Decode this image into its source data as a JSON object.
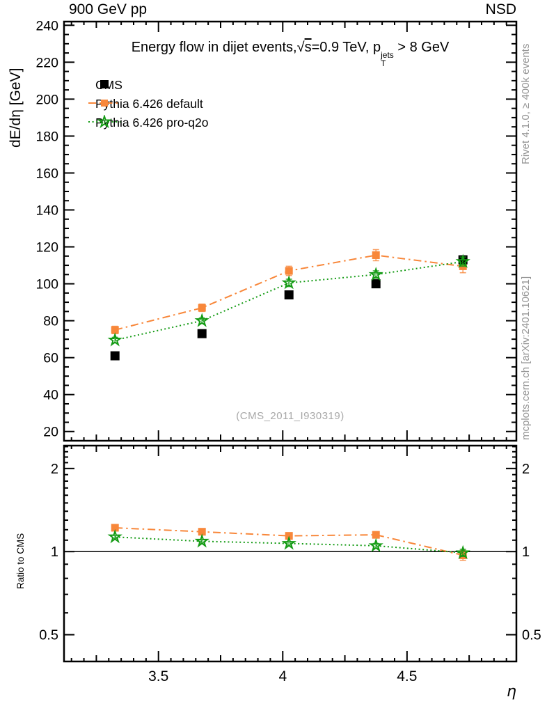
{
  "header": {
    "left": "900 GeV pp",
    "right": "NSD"
  },
  "title": {
    "prefix": "Energy flow in dijet events,",
    "sqrt_sym": "√",
    "sqrt_arg": "s",
    "mid": "=0.9 TeV, ",
    "p": "p",
    "sup": "jets",
    "sub": "T",
    "suffix": " > 8 GeV"
  },
  "axes": {
    "y_title": "dE/dη [GeV]",
    "ratio_title": "Ratio to CMS",
    "x_title": "η"
  },
  "legend": {
    "entries": [
      {
        "label": "CMS",
        "color": "#000000",
        "marker": "filled-square",
        "line": "none",
        "size": 12
      },
      {
        "label": "Pythia 6.426 default",
        "color": "#f8873a",
        "marker": "filled-square",
        "line": "dash-dot",
        "size": 10
      },
      {
        "label": "Pythia 6.426 pro-q2o",
        "color": "#149b14",
        "marker": "open-star",
        "line": "dotted",
        "size": 8
      }
    ]
  },
  "side_text": {
    "top_right": "Rivet 4.1.0, ≥ 400k events",
    "bottom_right": "mcplots.cern.ch [arXiv:2401.10621]"
  },
  "watermark": "(CMS_2011_I930319)",
  "colors": {
    "cms": "#000000",
    "pythia_default": "#f8873a",
    "pythia_proq2o": "#149b14",
    "side_text": "#959595",
    "watermark": "#a8a8a8"
  },
  "chart_data": [
    {
      "type": "scatter",
      "title": "Energy flow in dijet events, √s=0.9 TeV, pT^jets > 8 GeV",
      "xlabel": "η",
      "ylabel": "dE/dη [GeV]",
      "xlim": [
        3.12,
        4.94
      ],
      "ylim": [
        15,
        242
      ],
      "grid": false,
      "legend_position": "top-left",
      "watermark": "(CMS_2011_I930319)",
      "x": [
        3.325,
        3.675,
        4.025,
        4.375,
        4.725
      ],
      "x_bin_edges": [
        3.15,
        3.5,
        3.85,
        4.2,
        4.55,
        4.9
      ],
      "xticks": [
        3.5,
        4,
        4.5
      ],
      "yticks": [
        20,
        40,
        60,
        80,
        100,
        120,
        140,
        160,
        180,
        200,
        220,
        240
      ],
      "series": [
        {
          "name": "CMS",
          "values": [
            61,
            73,
            94,
            100,
            113
          ],
          "yerr": [
            0,
            0,
            0,
            0,
            0
          ],
          "color": "#000000",
          "marker": "filled-square",
          "line": "none",
          "size": 13
        },
        {
          "name": "Pythia 6.426 default",
          "values": [
            75,
            87,
            107,
            115.5,
            109.5
          ],
          "yerr": [
            2,
            2,
            2.5,
            3,
            3.5
          ],
          "color": "#f8873a",
          "marker": "filled-square",
          "line": "dash-dot",
          "size": 11
        },
        {
          "name": "Pythia 6.426 pro-q2o",
          "values": [
            69.5,
            80,
            100.5,
            105,
            112
          ],
          "yerr": [
            1.5,
            1.5,
            2,
            2,
            2.5
          ],
          "color": "#149b14",
          "marker": "open-star",
          "line": "dotted",
          "size": 8
        }
      ]
    },
    {
      "type": "scatter",
      "title": "",
      "xlabel": "η",
      "ylabel": "Ratio to CMS",
      "yscale": "log",
      "xlim": [
        3.12,
        4.94
      ],
      "ylim": [
        0.4,
        2.42
      ],
      "refline": 1,
      "x": [
        3.325,
        3.675,
        4.025,
        4.375,
        4.725
      ],
      "xticks": [
        3.5,
        4,
        4.5
      ],
      "yticks": [
        0.5,
        1,
        2
      ],
      "series": [
        {
          "name": "Pythia 6.426 default",
          "values": [
            1.22,
            1.18,
            1.14,
            1.15,
            0.97
          ],
          "yerr": [
            0.02,
            0.02,
            0.02,
            0.025,
            0.04
          ],
          "color": "#f8873a",
          "marker": "filled-square",
          "line": "dash-dot",
          "size": 11
        },
        {
          "name": "Pythia 6.426 pro-q2o",
          "values": [
            1.13,
            1.09,
            1.07,
            1.05,
            0.99
          ],
          "yerr": [
            0.015,
            0.015,
            0.015,
            0.02,
            0.03
          ],
          "color": "#149b14",
          "marker": "open-star",
          "line": "dotted",
          "size": 8
        }
      ]
    }
  ]
}
